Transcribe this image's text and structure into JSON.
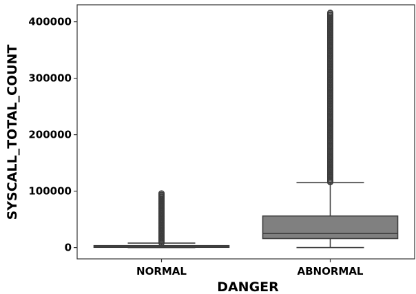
{
  "chart_data": {
    "type": "box",
    "xlabel": "DANGER",
    "ylabel": "SYSCALL_TOTAL_COUNT",
    "ylim": [
      -20000,
      430000
    ],
    "y_ticks": [
      0,
      100000,
      200000,
      300000,
      400000
    ],
    "y_tick_labels": [
      "0",
      "100000",
      "200000",
      "300000",
      "400000"
    ],
    "grid": false,
    "box_color": "#808080",
    "line_color": "#3d3d3d",
    "categories": [
      "NORMAL",
      "ABNORMAL"
    ],
    "boxes": [
      {
        "category": "NORMAL",
        "whisker_low": 0,
        "q1": 500,
        "median": 1500,
        "q3": 3500,
        "whisker_high": 8000,
        "outlier_range": [
          8500,
          96000
        ],
        "outliers": [
          8500,
          12000,
          16000,
          20000,
          25000,
          30000,
          35000,
          40000,
          45000,
          50000,
          55000,
          60000,
          65000,
          70000,
          74000,
          78000,
          82000,
          86000,
          90000,
          93000,
          96000
        ]
      },
      {
        "category": "ABNORMAL",
        "whisker_low": 0,
        "q1": 16000,
        "median": 25000,
        "q3": 56000,
        "whisker_high": 115000,
        "outlier_range": [
          116000,
          416000
        ],
        "outliers": [
          116000,
          125000,
          140000,
          160000,
          180000,
          200000,
          220000,
          240000,
          260000,
          280000,
          300000,
          320000,
          340000,
          355000,
          365000,
          372000,
          380000,
          385000,
          392000,
          397000,
          412000,
          416000
        ]
      }
    ]
  }
}
